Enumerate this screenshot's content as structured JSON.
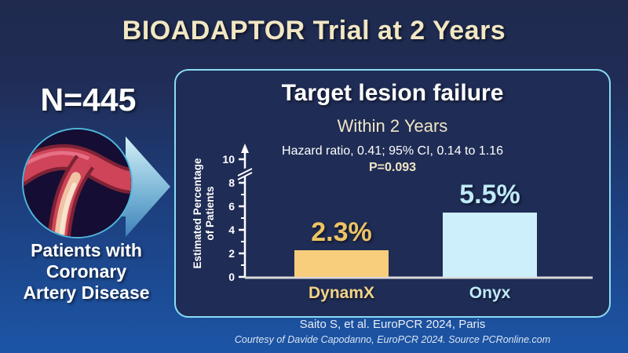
{
  "slide": {
    "title": "BIOADAPTOR Trial at 2 Years",
    "footer_citation": "Saito S, et al. EuroPCR 2024, Paris",
    "footer_credit": "Courtesy of Davide Capodanno, EuroPCR 2024. Source PCRonline.com"
  },
  "left_panel": {
    "n_label": "N=445",
    "caption": "Patients with\nCoronary\nArtery Disease",
    "image": "coronary-artery-illustration",
    "arrow_icon": "right-block-arrow"
  },
  "chart_data": {
    "type": "bar",
    "title": "Target lesion failure",
    "subtitle": "Within 2 Years",
    "annotation_line1": "Hazard ratio, 0.41; 95% CI, 0.14 to 1.16",
    "annotation_line2": "P=0.093",
    "ylabel": "Estimated Percentage\nof Patients",
    "categories": [
      "DynamX",
      "Onyx"
    ],
    "values": [
      2.3,
      5.5
    ],
    "value_labels": [
      "2.3%",
      "5.5%"
    ],
    "bar_colors": [
      "#f8ce7d",
      "#cdeffb"
    ],
    "value_label_colors": [
      "#eec464",
      "#bfeafa"
    ],
    "category_label_colors": [
      "#f2d489",
      "#bfeafa"
    ],
    "y_ticks": [
      0,
      2,
      4,
      6,
      8,
      10
    ],
    "ylim": [
      0,
      10
    ],
    "axis_break_between": [
      8,
      10
    ],
    "grid": false,
    "legend": false
  },
  "colors": {
    "background_top": "#1f2a4e",
    "background_bottom": "#1c55a6",
    "panel_border": "#8adcf3",
    "panel_background": "#1f2c55",
    "title_cream": "#f1e7c3",
    "axis_color": "#ffffff",
    "baseline_color": "#d9d9d9",
    "circle_border": "#4fb6da"
  }
}
